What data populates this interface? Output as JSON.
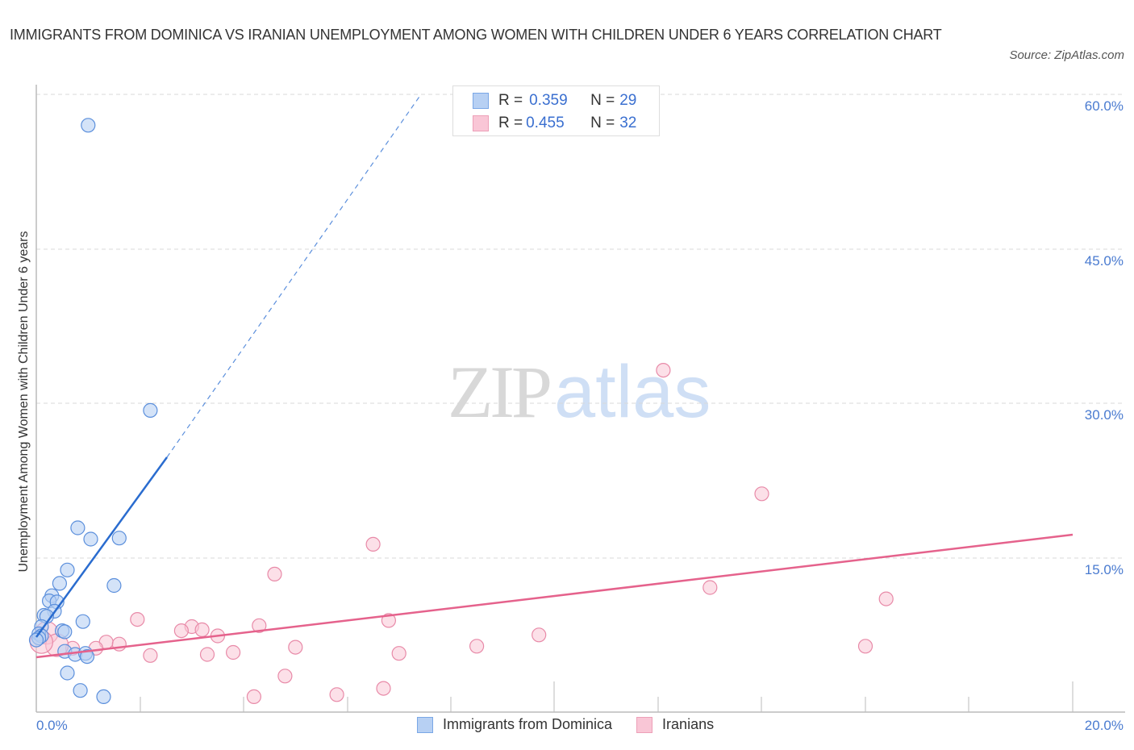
{
  "header": {
    "title": "IMMIGRANTS FROM DOMINICA VS IRANIAN UNEMPLOYMENT AMONG WOMEN WITH CHILDREN UNDER 6 YEARS CORRELATION CHART",
    "source": "Source: ZipAtlas.com"
  },
  "axes": {
    "ylabel": "Unemployment Among Women with Children Under 6 years",
    "yticks": [
      "60.0%",
      "45.0%",
      "30.0%",
      "15.0%"
    ],
    "xtick_left": "0.0%",
    "xtick_right": "20.0%"
  },
  "legend_top": {
    "rows": [
      {
        "r_label": "R = ",
        "r_value": "0.359",
        "n_label": "N = ",
        "n_value": "29"
      },
      {
        "r_label": "R = ",
        "r_value": "0.455",
        "n_label": "N = ",
        "n_value": "32"
      }
    ]
  },
  "legend_bottom": {
    "items": [
      {
        "label": "Immigrants from Dominica"
      },
      {
        "label": "Iranians"
      }
    ]
  },
  "watermark": {
    "zip": "ZIP",
    "atlas": "atlas"
  },
  "colors": {
    "blue_fill": "#b7d0f3",
    "blue_stroke": "#5b8fdc",
    "blue_line": "#2a6ccf",
    "pink_fill": "#f9c6d6",
    "pink_stroke": "#e88aa8",
    "pink_line": "#e5628c",
    "tick_label": "#4a7bd0"
  },
  "chart_data": {
    "type": "scatter",
    "title": "IMMIGRANTS FROM DOMINICA VS IRANIAN UNEMPLOYMENT AMONG WOMEN WITH CHILDREN UNDER 6 YEARS CORRELATION CHART",
    "xlabel": "",
    "ylabel": "Unemployment Among Women with Children Under 6 years",
    "xlim": [
      0,
      20
    ],
    "ylim": [
      0,
      60
    ],
    "x_unit": "%",
    "y_unit": "%",
    "yticks": [
      15,
      30,
      45,
      60
    ],
    "grid": "horizontal dashed",
    "legend_position": "bottom center",
    "series": [
      {
        "name": "Immigrants from Dominica",
        "R": 0.359,
        "N": 29,
        "points": [
          [
            1.0,
            57.0
          ],
          [
            2.2,
            29.3
          ],
          [
            0.8,
            17.9
          ],
          [
            1.05,
            16.8
          ],
          [
            1.6,
            16.9
          ],
          [
            0.6,
            13.8
          ],
          [
            1.5,
            12.3
          ],
          [
            0.45,
            12.5
          ],
          [
            0.3,
            11.3
          ],
          [
            0.25,
            10.8
          ],
          [
            0.4,
            10.7
          ],
          [
            0.35,
            9.8
          ],
          [
            0.15,
            9.4
          ],
          [
            0.2,
            9.3
          ],
          [
            0.9,
            8.8
          ],
          [
            0.1,
            8.3
          ],
          [
            0.05,
            7.6
          ],
          [
            0.1,
            7.4
          ],
          [
            0.5,
            7.9
          ],
          [
            0.55,
            7.8
          ],
          [
            0.05,
            7.2
          ],
          [
            0.55,
            5.9
          ],
          [
            0.75,
            5.6
          ],
          [
            0.95,
            5.7
          ],
          [
            0.98,
            5.4
          ],
          [
            0.6,
            3.8
          ],
          [
            0.85,
            2.1
          ],
          [
            1.3,
            1.5
          ],
          [
            0.0,
            7.0
          ]
        ],
        "trendline": {
          "x0": 0,
          "y0": 7.3,
          "x1": 2.5,
          "y1": 24.8,
          "dashed_extension_to": [
            7.4,
            60
          ]
        }
      },
      {
        "name": "Iranians",
        "R": 0.455,
        "N": 32,
        "points": [
          [
            12.1,
            33.2
          ],
          [
            14.0,
            21.2
          ],
          [
            6.5,
            16.3
          ],
          [
            4.6,
            13.4
          ],
          [
            13.0,
            12.1
          ],
          [
            16.4,
            11.0
          ],
          [
            1.95,
            9.0
          ],
          [
            3.0,
            8.3
          ],
          [
            3.2,
            8.0
          ],
          [
            2.8,
            7.9
          ],
          [
            4.3,
            8.4
          ],
          [
            3.5,
            7.4
          ],
          [
            6.8,
            8.9
          ],
          [
            9.7,
            7.5
          ],
          [
            1.35,
            6.8
          ],
          [
            0.2,
            7.7
          ],
          [
            1.15,
            6.2
          ],
          [
            0.7,
            6.2
          ],
          [
            1.6,
            6.6
          ],
          [
            2.2,
            5.5
          ],
          [
            3.3,
            5.6
          ],
          [
            3.8,
            5.8
          ],
          [
            5.0,
            6.3
          ],
          [
            7.0,
            5.7
          ],
          [
            8.5,
            6.4
          ],
          [
            16.0,
            6.4
          ],
          [
            0.4,
            6.5
          ],
          [
            4.8,
            3.5
          ],
          [
            4.2,
            1.5
          ],
          [
            5.8,
            1.7
          ],
          [
            6.7,
            2.3
          ],
          [
            0.1,
            6.8
          ]
        ],
        "trendline": {
          "x0": 0,
          "y0": 5.3,
          "x1": 20,
          "y1": 17.2
        }
      }
    ]
  }
}
